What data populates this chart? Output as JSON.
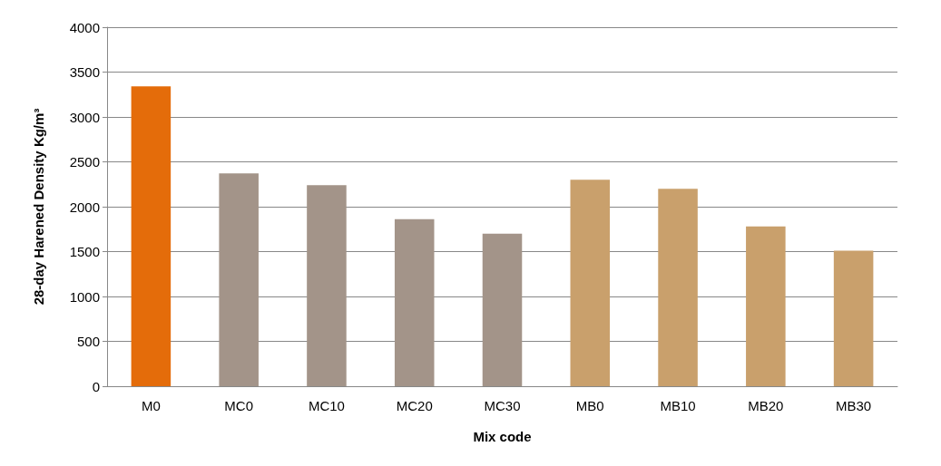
{
  "chart_data": {
    "type": "bar",
    "xlabel": "Mix code",
    "ylabel": "28-day Harened Density Kg/m³",
    "categories": [
      "M0",
      "MC0",
      "MC10",
      "MC20",
      "MC30",
      "MB0",
      "MB10",
      "MB20",
      "MB30"
    ],
    "values": [
      3340,
      2370,
      2240,
      1860,
      1700,
      2300,
      2200,
      1780,
      1510
    ],
    "colors": [
      "#e46c0a",
      "#a39489",
      "#a39489",
      "#a39489",
      "#a39489",
      "#c9a06c",
      "#c9a06c",
      "#c9a06c",
      "#c9a06c"
    ],
    "ylim": [
      0,
      4000
    ],
    "yticks": [
      0,
      500,
      1000,
      1500,
      2000,
      2500,
      3000,
      3500,
      4000
    ],
    "grid": "y"
  }
}
